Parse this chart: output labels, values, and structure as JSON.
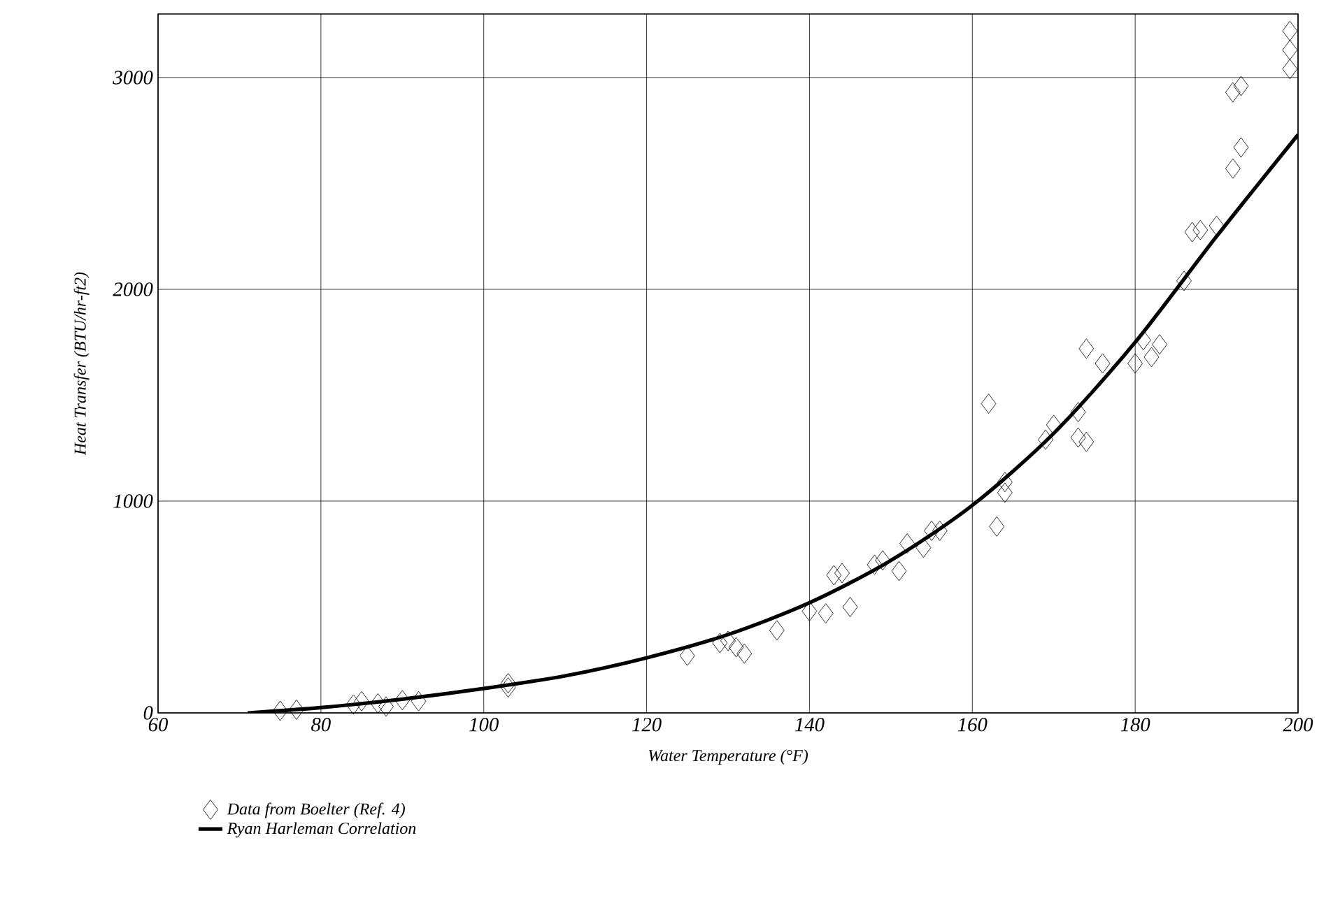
{
  "chart_data": {
    "type": "scatter",
    "xlabel": "Water Temperature (°F)",
    "ylabel": "Heat Transfer (BTU/hr-ft2)",
    "xlim": [
      60,
      200
    ],
    "ylim": [
      0,
      3300
    ],
    "xticks": [
      60,
      80,
      100,
      120,
      140,
      160,
      180,
      200
    ],
    "yticks": [
      0,
      1000,
      2000,
      3000
    ],
    "grid": true,
    "legend": "bottom left",
    "series": [
      {
        "name": "Data from Boelter (Ref. 4)",
        "marker": "diamond",
        "color": "#000000",
        "x": [
          75,
          77,
          84,
          85,
          87,
          88,
          90,
          92,
          103,
          103,
          125,
          129,
          130,
          131,
          132,
          136,
          140,
          142,
          143,
          144,
          145,
          148,
          149,
          151,
          152,
          154,
          155,
          156,
          162,
          163,
          164,
          164,
          169,
          170,
          173,
          173,
          174,
          174,
          176,
          180,
          181,
          182,
          183,
          186,
          187,
          188,
          190,
          192,
          193,
          192,
          193,
          199,
          199,
          199
        ],
        "values": [
          10,
          15,
          40,
          55,
          45,
          30,
          60,
          55,
          120,
          140,
          270,
          330,
          340,
          310,
          280,
          390,
          480,
          470,
          650,
          660,
          500,
          700,
          720,
          670,
          800,
          780,
          860,
          860,
          1460,
          880,
          1090,
          1040,
          1290,
          1360,
          1300,
          1420,
          1280,
          1720,
          1650,
          1650,
          1760,
          1680,
          1740,
          2040,
          2270,
          2280,
          2300,
          2930,
          2960,
          2570,
          2670,
          3040,
          3130,
          3220
        ]
      },
      {
        "name": "Ryan Harleman Correlation",
        "type": "line",
        "marker": "none",
        "line_style": "solid",
        "color": "#000000",
        "x": [
          71,
          80,
          90,
          100,
          110,
          120,
          130,
          140,
          150,
          160,
          170,
          180,
          190,
          200
        ],
        "values": [
          0,
          25,
          65,
          115,
          175,
          260,
          370,
          520,
          720,
          980,
          1320,
          1750,
          2250,
          2730
        ]
      }
    ]
  }
}
